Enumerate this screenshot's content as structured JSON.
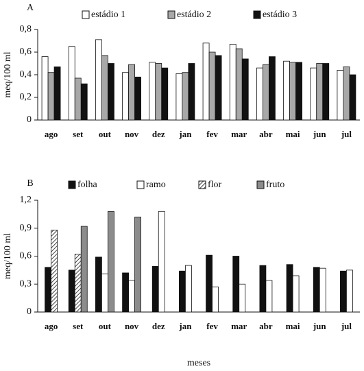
{
  "chart_data": [
    {
      "type": "bar",
      "title": "A",
      "ylabel": "meq/100 ml",
      "categories": [
        "ago",
        "set",
        "out",
        "nov",
        "dez",
        "jan",
        "fev",
        "mar",
        "abr",
        "mai",
        "jun",
        "jul"
      ],
      "series": [
        {
          "name": "estádio 1",
          "color": "#ffffff",
          "values": [
            0.56,
            0.65,
            0.71,
            0.42,
            0.51,
            0.41,
            0.68,
            0.67,
            0.46,
            0.52,
            0.46,
            0.44
          ]
        },
        {
          "name": "estádio 2",
          "color": "#a8a8a8",
          "values": [
            0.42,
            0.37,
            0.57,
            0.49,
            0.5,
            0.42,
            0.6,
            0.63,
            0.49,
            0.51,
            0.5,
            0.47
          ]
        },
        {
          "name": "estádio 3",
          "color": "#111111",
          "values": [
            0.47,
            0.32,
            0.5,
            0.38,
            0.46,
            0.5,
            0.57,
            0.54,
            0.56,
            0.51,
            0.5,
            0.4
          ]
        }
      ],
      "ylim": [
        0,
        0.8
      ],
      "yticks": [
        0,
        {
          "value": 0.2,
          "label": "0,2"
        },
        {
          "value": 0.4,
          "label": "0,4"
        },
        {
          "value": 0.6,
          "label": "0,6"
        },
        {
          "value": 0.8,
          "label": "0,8"
        }
      ]
    },
    {
      "type": "bar",
      "title": "B",
      "ylabel": "meq/100 ml",
      "xlabel": "meses",
      "categories": [
        "ago",
        "set",
        "out",
        "nov",
        "dez",
        "jan",
        "fev",
        "mar",
        "abr",
        "mai",
        "jun",
        "jul"
      ],
      "series": [
        {
          "name": "folha",
          "color": "#111111",
          "values": [
            0.48,
            0.45,
            0.59,
            0.42,
            0.49,
            0.44,
            0.61,
            0.6,
            0.5,
            0.51,
            0.48,
            0.44
          ]
        },
        {
          "name": "ramo",
          "color": "#ffffff",
          "values": [
            null,
            null,
            0.41,
            0.34,
            1.08,
            0.5,
            0.27,
            0.3,
            0.34,
            0.39,
            0.47,
            0.45
          ]
        },
        {
          "name": "flor",
          "color": "#777777",
          "hatch": true,
          "values": [
            0.88,
            0.62,
            null,
            null,
            null,
            null,
            null,
            null,
            null,
            null,
            null,
            null
          ]
        },
        {
          "name": "fruto",
          "color": "#8c8c8c",
          "values": [
            null,
            0.92,
            1.08,
            1.02,
            null,
            null,
            null,
            null,
            null,
            null,
            null,
            null
          ]
        }
      ],
      "ylim": [
        0,
        1.2
      ],
      "yticks": [
        0,
        {
          "value": 0.3,
          "label": "0,3"
        },
        {
          "value": 0.6,
          "label": "0,6"
        },
        {
          "value": 0.9,
          "label": "0,9"
        },
        {
          "value": 1.2,
          "label": "1,2"
        }
      ]
    }
  ]
}
